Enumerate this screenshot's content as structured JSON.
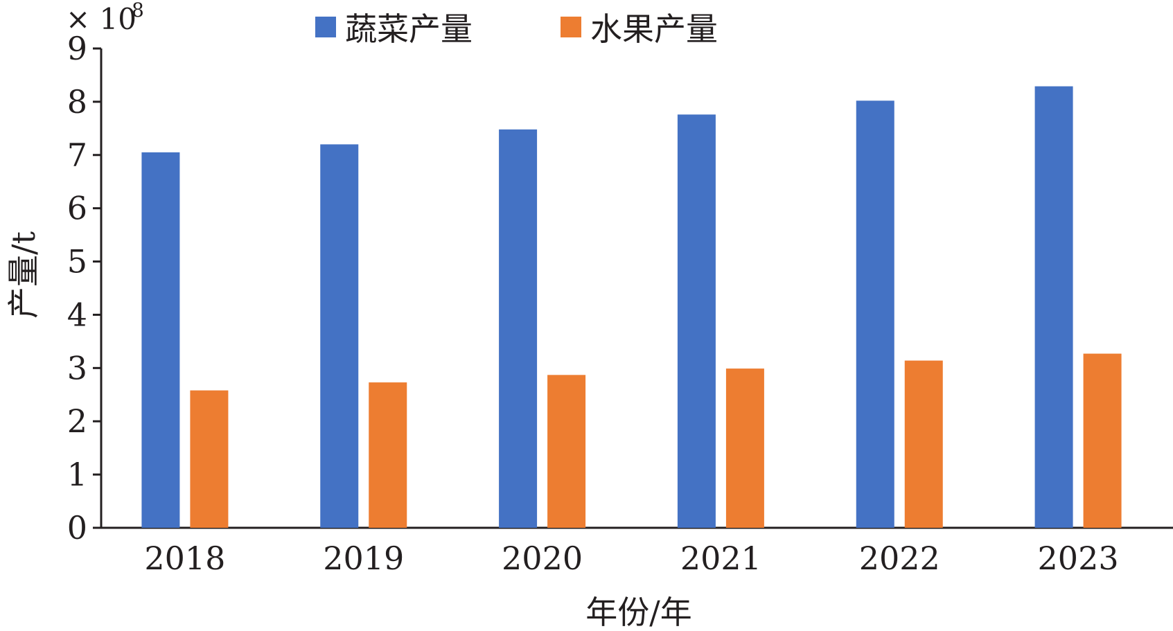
{
  "chart_data": {
    "type": "bar",
    "categories": [
      "2018",
      "2019",
      "2020",
      "2021",
      "2022",
      "2023"
    ],
    "series": [
      {
        "name": "蔬菜产量",
        "color": "#4472c4",
        "values": [
          7.05,
          7.2,
          7.48,
          7.76,
          8.02,
          8.29
        ]
      },
      {
        "name": "水果产量",
        "color": "#ed7d31",
        "values": [
          2.58,
          2.73,
          2.87,
          2.99,
          3.14,
          3.27
        ]
      }
    ],
    "xlabel": "年份/年",
    "ylabel": "产量/t",
    "y_multiplier_base": "× 10",
    "y_multiplier_exp": "8",
    "ylim": [
      0,
      9
    ],
    "yticks": [
      0,
      1,
      2,
      3,
      4,
      5,
      6,
      7,
      8,
      9
    ],
    "legend_position": "top-center",
    "grid": false
  }
}
